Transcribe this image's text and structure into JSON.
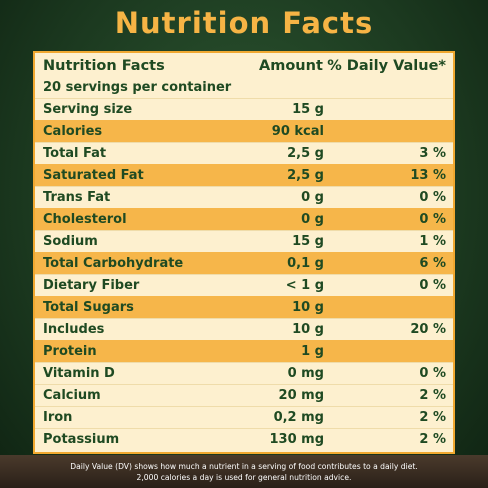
{
  "title": "Nutrition Facts",
  "panel": {
    "heading": "Nutrition Facts",
    "amount_header": "Amount",
    "dv_header": "% Daily Value*",
    "servings": "20 servings per container"
  },
  "rows": [
    {
      "label": "Serving size",
      "amount": "15 g"
    },
    {
      "label": "Calories",
      "amount": "90 kcal",
      "highlight": true
    },
    {
      "label": "Total Fat",
      "amount": "2,5 g",
      "dv": "3 %"
    },
    {
      "label": "Saturated Fat",
      "amount": "2,5 g",
      "dv": "13 %",
      "highlight": true
    },
    {
      "label": "Trans Fat",
      "amount": "0 g",
      "dv": "0 %"
    },
    {
      "label": "Cholesterol",
      "amount": "0 g",
      "dv": "0 %",
      "highlight": true
    },
    {
      "label": "Sodium",
      "amount": "15 g",
      "dv": "1 %"
    },
    {
      "label": "Total Carbohydrate",
      "amount": "0,1 g",
      "dv": "6 %",
      "highlight": true
    },
    {
      "label": "Dietary Fiber",
      "amount": "< 1 g",
      "dv": "0 %"
    },
    {
      "label": "Total Sugars",
      "amount": "10 g",
      "highlight": true
    },
    {
      "label": "Includes",
      "amount": "10 g",
      "dv": "20 %"
    },
    {
      "label": "Protein",
      "amount": "1 g",
      "highlight": true
    },
    {
      "label": "Vitamin D",
      "amount": "0 mg",
      "dv": "0 %"
    },
    {
      "label": "Calcium",
      "amount": "20 mg",
      "dv": "2 %"
    },
    {
      "label": "Iron",
      "amount": "0,2 mg",
      "dv": "2 %"
    },
    {
      "label": "Potassium",
      "amount": "130 mg",
      "dv": "2 %"
    }
  ],
  "footer": [
    "Daily Value (DV) shows how much a nutrient in a serving of food contributes to a daily diet.",
    "2,000 calories a day is used for general nutrition advice."
  ]
}
